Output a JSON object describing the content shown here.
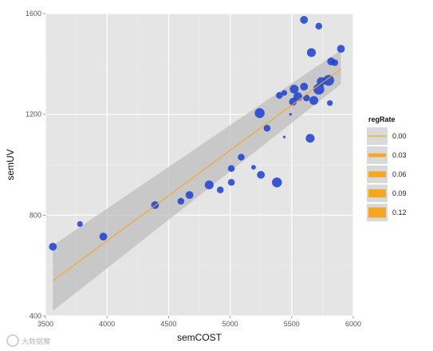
{
  "chart_data": {
    "type": "scatter",
    "xlabel": "semCOST",
    "ylabel": "semUV",
    "xlim": [
      3500,
      6000
    ],
    "ylim": [
      400,
      1600
    ],
    "xticks": [
      3500,
      4000,
      4500,
      5000,
      5500,
      6000
    ],
    "yticks": [
      400,
      800,
      1200,
      1600
    ],
    "grid": true,
    "point_color": "#1a3fd1",
    "fit_line_color": "#f5a623",
    "confidence_band_color": "#bdbdbd",
    "panel_color": "#e5e5e5",
    "legend": {
      "title": "regRate",
      "position": "right",
      "entries": [
        "0.00",
        "0.03",
        "0.06",
        "0.09",
        "0.12"
      ]
    },
    "fit": {
      "x": [
        3560,
        5900
      ],
      "y": [
        540,
        1380
      ],
      "band_lower": [
        420,
        1320
      ],
      "band_upper": [
        680,
        1455
      ]
    },
    "points": [
      {
        "x": 3560,
        "y": 675,
        "regRate": 0.06
      },
      {
        "x": 3780,
        "y": 765,
        "regRate": 0.04
      },
      {
        "x": 3970,
        "y": 715,
        "regRate": 0.06
      },
      {
        "x": 4390,
        "y": 840,
        "regRate": 0.06
      },
      {
        "x": 4600,
        "y": 855,
        "regRate": 0.05
      },
      {
        "x": 4670,
        "y": 880,
        "regRate": 0.06
      },
      {
        "x": 4830,
        "y": 920,
        "regRate": 0.07
      },
      {
        "x": 4920,
        "y": 900,
        "regRate": 0.05
      },
      {
        "x": 5010,
        "y": 930,
        "regRate": 0.05
      },
      {
        "x": 5010,
        "y": 985,
        "regRate": 0.05
      },
      {
        "x": 5090,
        "y": 1030,
        "regRate": 0.05
      },
      {
        "x": 5190,
        "y": 990,
        "regRate": 0.03
      },
      {
        "x": 5250,
        "y": 960,
        "regRate": 0.06
      },
      {
        "x": 5380,
        "y": 930,
        "regRate": 0.08
      },
      {
        "x": 5240,
        "y": 1205,
        "regRate": 0.08
      },
      {
        "x": 5300,
        "y": 1145,
        "regRate": 0.05
      },
      {
        "x": 5400,
        "y": 1275,
        "regRate": 0.05
      },
      {
        "x": 5440,
        "y": 1110,
        "regRate": 0.01
      },
      {
        "x": 5440,
        "y": 1285,
        "regRate": 0.04
      },
      {
        "x": 5490,
        "y": 1200,
        "regRate": 0.01
      },
      {
        "x": 5510,
        "y": 1250,
        "regRate": 0.06
      },
      {
        "x": 5520,
        "y": 1300,
        "regRate": 0.07
      },
      {
        "x": 5550,
        "y": 1270,
        "regRate": 0.07
      },
      {
        "x": 5600,
        "y": 1310,
        "regRate": 0.06
      },
      {
        "x": 5620,
        "y": 1265,
        "regRate": 0.05
      },
      {
        "x": 5600,
        "y": 1575,
        "regRate": 0.06
      },
      {
        "x": 5650,
        "y": 1105,
        "regRate": 0.07
      },
      {
        "x": 5660,
        "y": 1445,
        "regRate": 0.07
      },
      {
        "x": 5680,
        "y": 1255,
        "regRate": 0.07
      },
      {
        "x": 5720,
        "y": 1550,
        "regRate": 0.05
      },
      {
        "x": 5720,
        "y": 1300,
        "regRate": 0.09
      },
      {
        "x": 5740,
        "y": 1330,
        "regRate": 0.07
      },
      {
        "x": 5800,
        "y": 1335,
        "regRate": 0.09
      },
      {
        "x": 5810,
        "y": 1245,
        "regRate": 0.04
      },
      {
        "x": 5820,
        "y": 1410,
        "regRate": 0.06
      },
      {
        "x": 5850,
        "y": 1405,
        "regRate": 0.05
      },
      {
        "x": 5900,
        "y": 1460,
        "regRate": 0.06
      }
    ]
  },
  "watermark": "大数据魔"
}
